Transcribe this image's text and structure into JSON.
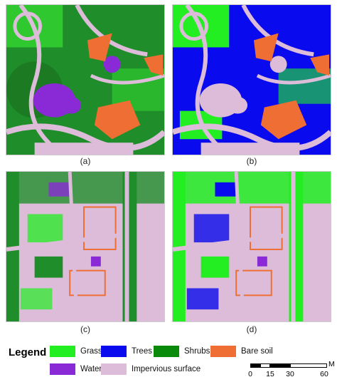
{
  "panels": [
    {
      "id": "a",
      "caption": "(a)"
    },
    {
      "id": "b",
      "caption": "(b)"
    },
    {
      "id": "c",
      "caption": "(c)"
    },
    {
      "id": "d",
      "caption": "(d)"
    }
  ],
  "legend": {
    "title": "Legend",
    "items": [
      {
        "label": "Grass",
        "color": "#22ee22"
      },
      {
        "label": "Trees",
        "color": "#0a0aee"
      },
      {
        "label": "Shrubs",
        "color": "#0a8a0a"
      },
      {
        "label": "Bare soil",
        "color": "#ee6e33"
      },
      {
        "label": "Water",
        "color": "#8a2ad6"
      },
      {
        "label": "Impervious surface",
        "color": "#dcbcd8"
      }
    ]
  },
  "scale_bar": {
    "ticks": [
      "0",
      "15",
      "30",
      "60"
    ],
    "unit": "M"
  }
}
